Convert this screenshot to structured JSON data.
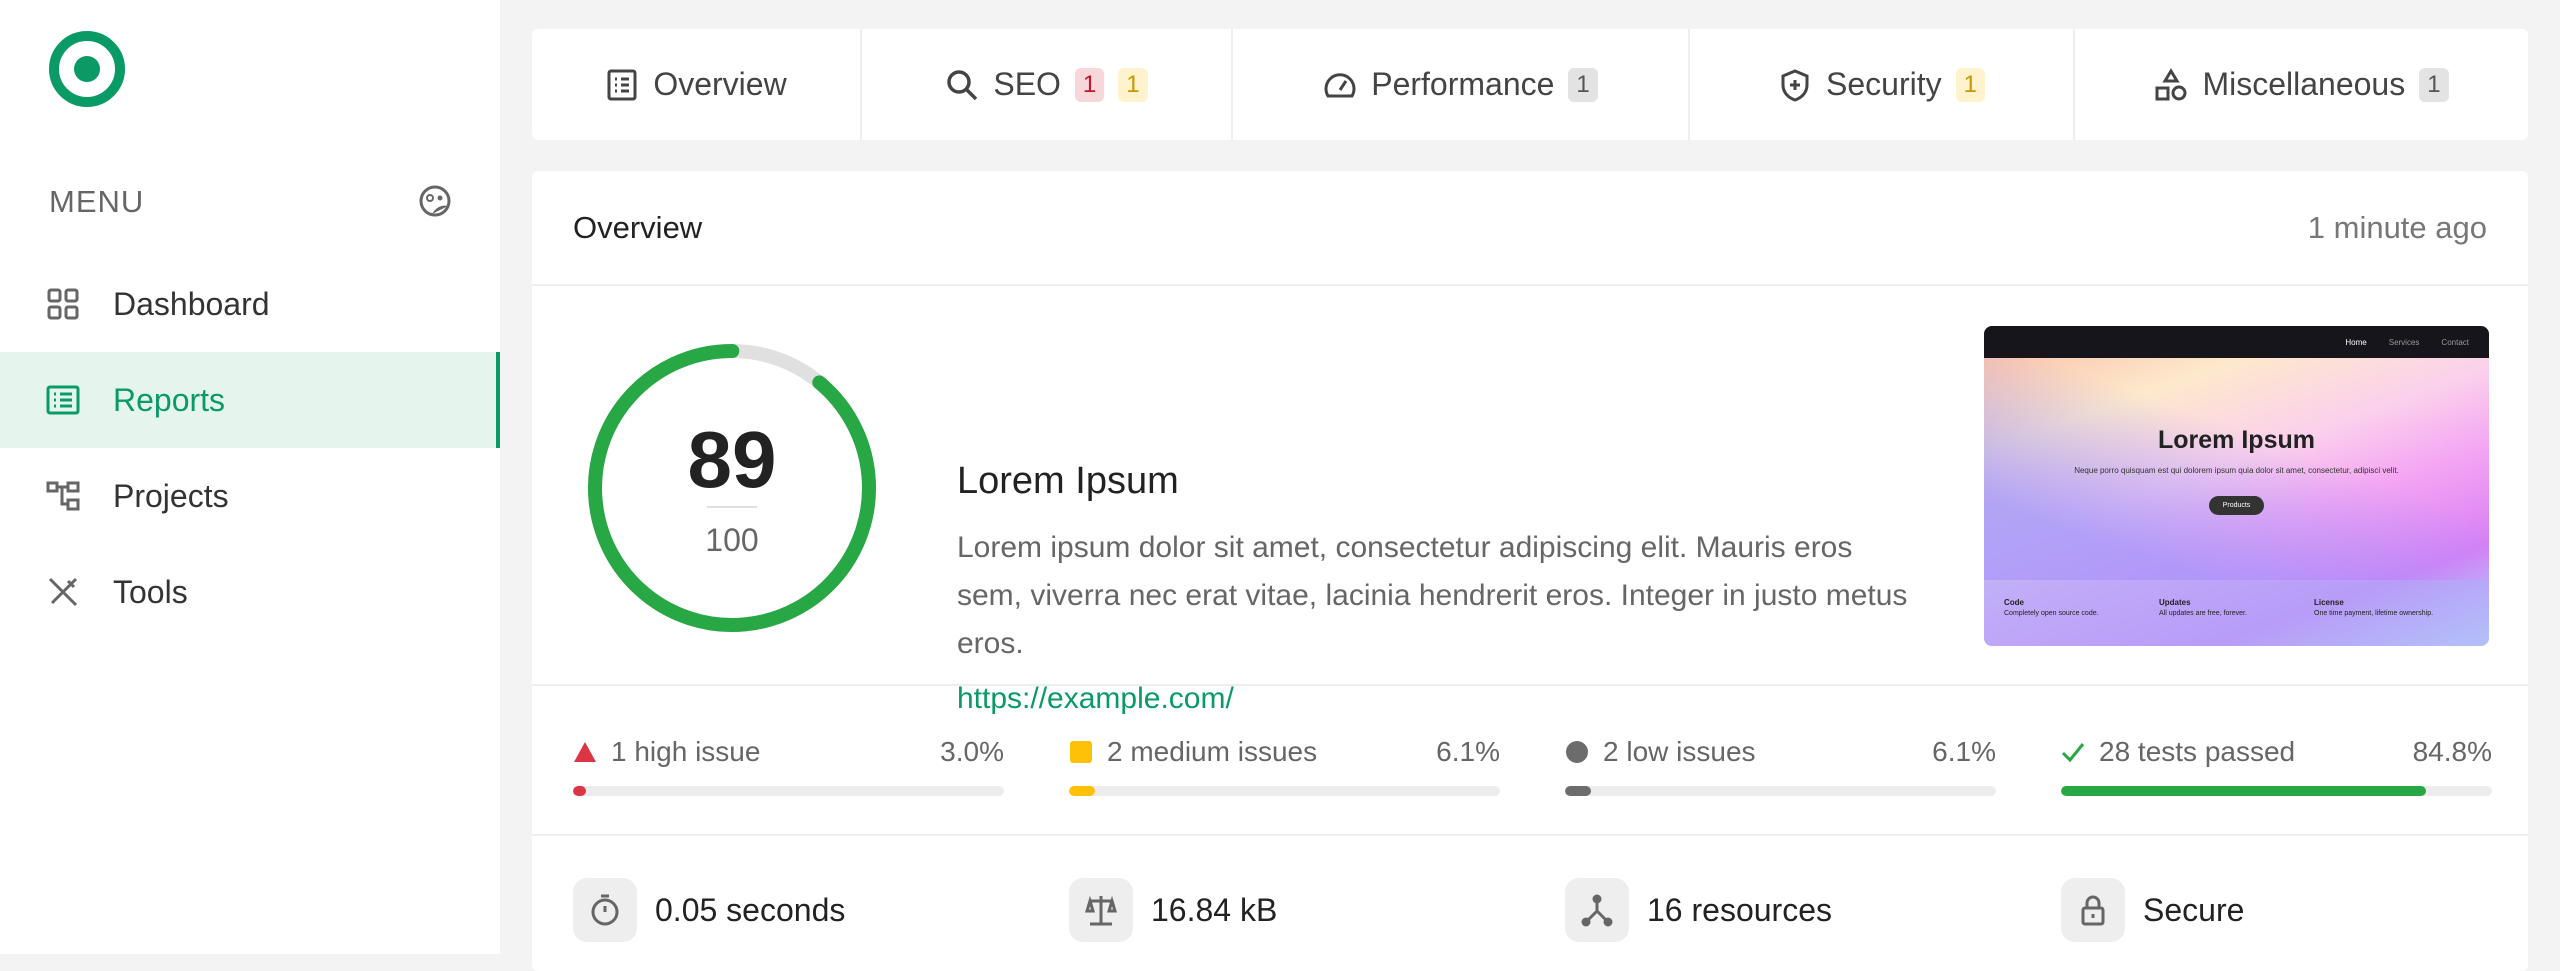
{
  "sidebar": {
    "menu_label": "MENU",
    "items": [
      {
        "label": "Dashboard",
        "icon": "grid-icon"
      },
      {
        "label": "Reports",
        "icon": "report-list-icon",
        "active": true
      },
      {
        "label": "Projects",
        "icon": "hierarchy-icon"
      },
      {
        "label": "Tools",
        "icon": "tools-icon"
      }
    ]
  },
  "tabs": [
    {
      "label": "Overview",
      "icon": "list-icon"
    },
    {
      "label": "SEO",
      "icon": "search-icon",
      "badges": [
        "1",
        "1"
      ]
    },
    {
      "label": "Performance",
      "icon": "gauge-icon",
      "badges": [
        "1"
      ]
    },
    {
      "label": "Security",
      "icon": "shield-icon",
      "badges": [
        "1"
      ]
    },
    {
      "label": "Miscellaneous",
      "icon": "shapes-icon",
      "badges": [
        "1"
      ]
    }
  ],
  "overview": {
    "title": "Overview",
    "time": "1 minute ago",
    "score": "89",
    "max": "100",
    "score_fraction": 0.89,
    "site_title": "Lorem Ipsum",
    "description": "Lorem ipsum dolor sit amet, consectetur adipiscing elit. Mauris eros sem, viverra nec erat vitae, lacinia hendrerit eros. Integer in justo metus eros.",
    "url": "https://example.com/",
    "preview": {
      "nav": [
        "Home",
        "Services",
        "Contact"
      ],
      "heading": "Lorem Ipsum",
      "subtitle": "Neque porro quisquam est qui dolorem ipsum quia dolor sit amet, consectetur, adipisci velit.",
      "button": "Products",
      "features": [
        {
          "title": "Code",
          "text": "Completely open source code."
        },
        {
          "title": "Updates",
          "text": "All updates are free, forever."
        },
        {
          "title": "License",
          "text": "One time payment, lifetime ownership."
        }
      ]
    }
  },
  "issues": [
    {
      "label": "1 high issue",
      "percent": "3.0%",
      "value": 3.0,
      "color": "#dc3545"
    },
    {
      "label": "2 medium issues",
      "percent": "6.1%",
      "value": 6.1,
      "color": "#ffc107"
    },
    {
      "label": "2 low issues",
      "percent": "6.1%",
      "value": 6.1,
      "color": "#6c6c6c"
    },
    {
      "label": "28 tests passed",
      "percent": "84.8%",
      "value": 84.8,
      "color": "#28a745"
    }
  ],
  "stats": [
    {
      "label": "0.05 seconds",
      "icon": "stopwatch-icon"
    },
    {
      "label": "16.84 kB",
      "icon": "scale-icon"
    },
    {
      "label": "16 resources",
      "icon": "resources-icon"
    },
    {
      "label": "Secure",
      "icon": "lock-icon"
    }
  ],
  "colors": {
    "accent": "#0a9a65",
    "score": "#28a745"
  }
}
